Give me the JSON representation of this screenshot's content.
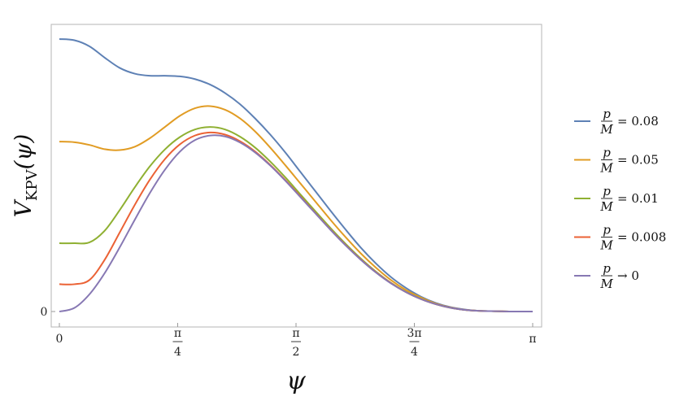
{
  "chart_data": {
    "type": "line",
    "title": "",
    "xlabel": "ψ",
    "ylabel": {
      "main": "V",
      "subscript": "KPV",
      "argument": "(ψ)"
    },
    "xlim": [
      0,
      3.14159
    ],
    "ylim": [
      -0.05,
      1.0
    ],
    "x_ticks": [
      {
        "value": 0,
        "num": "0",
        "den": ""
      },
      {
        "value": 0.785398,
        "num": "π",
        "den": "4"
      },
      {
        "value": 1.570796,
        "num": "π",
        "den": "2"
      },
      {
        "value": 2.356194,
        "num": "3π",
        "den": "4"
      },
      {
        "value": 3.141593,
        "num": "π",
        "den": ""
      }
    ],
    "y_ticks": [
      {
        "value": 0,
        "label": "0"
      }
    ],
    "legend_position": "right",
    "legend_prefix": {
      "num": "p",
      "den": "M"
    },
    "series": [
      {
        "name": "= 0.08",
        "color": "#5E81B5",
        "x": [
          0,
          0.1,
          0.2,
          0.3,
          0.4,
          0.5,
          0.6,
          0.7,
          0.8,
          0.9,
          1.0,
          1.1,
          1.2,
          1.3,
          1.4,
          1.5,
          1.6,
          1.7,
          1.8,
          1.9,
          2.0,
          2.1,
          2.2,
          2.3,
          2.4,
          2.5,
          2.6,
          2.7,
          2.8,
          2.9,
          3.0,
          3.1416
        ],
        "y": [
          0.898,
          0.894,
          0.874,
          0.837,
          0.803,
          0.784,
          0.777,
          0.777,
          0.775,
          0.766,
          0.748,
          0.72,
          0.683,
          0.636,
          0.583,
          0.524,
          0.46,
          0.396,
          0.332,
          0.27,
          0.211,
          0.159,
          0.114,
          0.078,
          0.049,
          0.028,
          0.014,
          0.006,
          0.002,
          0.001,
          0.0,
          0.0
        ]
      },
      {
        "name": "= 0.05",
        "color": "#E19C24",
        "x": [
          0,
          0.1,
          0.2,
          0.3,
          0.4,
          0.5,
          0.6,
          0.7,
          0.8,
          0.9,
          1.0,
          1.1,
          1.2,
          1.3,
          1.4,
          1.5,
          1.6,
          1.7,
          1.8,
          1.9,
          2.0,
          2.1,
          2.2,
          2.3,
          2.4,
          2.5,
          2.6,
          2.7,
          2.8,
          2.9,
          3.0,
          3.1416
        ],
        "y": [
          0.56,
          0.558,
          0.549,
          0.535,
          0.532,
          0.543,
          0.571,
          0.608,
          0.645,
          0.67,
          0.677,
          0.665,
          0.636,
          0.593,
          0.54,
          0.482,
          0.422,
          0.362,
          0.302,
          0.245,
          0.192,
          0.145,
          0.104,
          0.071,
          0.046,
          0.026,
          0.013,
          0.005,
          0.002,
          0.001,
          0.0,
          0.0
        ]
      },
      {
        "name": "= 0.01",
        "color": "#8FB032",
        "x": [
          0,
          0.1,
          0.2,
          0.3,
          0.4,
          0.5,
          0.6,
          0.7,
          0.8,
          0.9,
          1.0,
          1.1,
          1.2,
          1.3,
          1.4,
          1.5,
          1.6,
          1.7,
          1.8,
          1.9,
          2.0,
          2.1,
          2.2,
          2.3,
          2.4,
          2.5,
          2.6,
          2.7,
          2.8,
          2.9,
          3.0,
          3.1416
        ],
        "y": [
          0.225,
          0.225,
          0.228,
          0.266,
          0.334,
          0.409,
          0.478,
          0.534,
          0.575,
          0.6,
          0.608,
          0.6,
          0.576,
          0.54,
          0.494,
          0.442,
          0.386,
          0.33,
          0.275,
          0.223,
          0.175,
          0.132,
          0.095,
          0.065,
          0.042,
          0.024,
          0.012,
          0.005,
          0.002,
          0.001,
          0.0,
          0.0
        ]
      },
      {
        "name": "= 0.008",
        "color": "#EB6235",
        "x": [
          0,
          0.1,
          0.2,
          0.3,
          0.4,
          0.5,
          0.6,
          0.7,
          0.8,
          0.9,
          1.0,
          1.1,
          1.2,
          1.3,
          1.4,
          1.5,
          1.6,
          1.7,
          1.8,
          1.9,
          2.0,
          2.1,
          2.2,
          2.3,
          2.4,
          2.5,
          2.6,
          2.7,
          2.8,
          2.9,
          3.0,
          3.1416
        ],
        "y": [
          0.09,
          0.09,
          0.104,
          0.17,
          0.26,
          0.351,
          0.434,
          0.502,
          0.551,
          0.58,
          0.59,
          0.583,
          0.561,
          0.527,
          0.483,
          0.433,
          0.379,
          0.324,
          0.27,
          0.219,
          0.172,
          0.13,
          0.094,
          0.064,
          0.041,
          0.024,
          0.012,
          0.005,
          0.002,
          0.001,
          0.0,
          0.0
        ]
      },
      {
        "name": "→ 0",
        "color": "#8778B3",
        "x": [
          0,
          0.1,
          0.2,
          0.3,
          0.4,
          0.5,
          0.6,
          0.7,
          0.8,
          0.9,
          1.0,
          1.1,
          1.2,
          1.3,
          1.4,
          1.5,
          1.6,
          1.7,
          1.8,
          1.9,
          2.0,
          2.1,
          2.2,
          2.3,
          2.4,
          2.5,
          2.6,
          2.7,
          2.8,
          2.9,
          3.0,
          3.1416
        ],
        "y": [
          0.0,
          0.012,
          0.057,
          0.126,
          0.211,
          0.302,
          0.39,
          0.467,
          0.527,
          0.565,
          0.58,
          0.577,
          0.557,
          0.524,
          0.481,
          0.431,
          0.377,
          0.323,
          0.269,
          0.218,
          0.171,
          0.129,
          0.093,
          0.064,
          0.041,
          0.024,
          0.012,
          0.005,
          0.002,
          0.001,
          0.0,
          0.0
        ]
      }
    ]
  }
}
